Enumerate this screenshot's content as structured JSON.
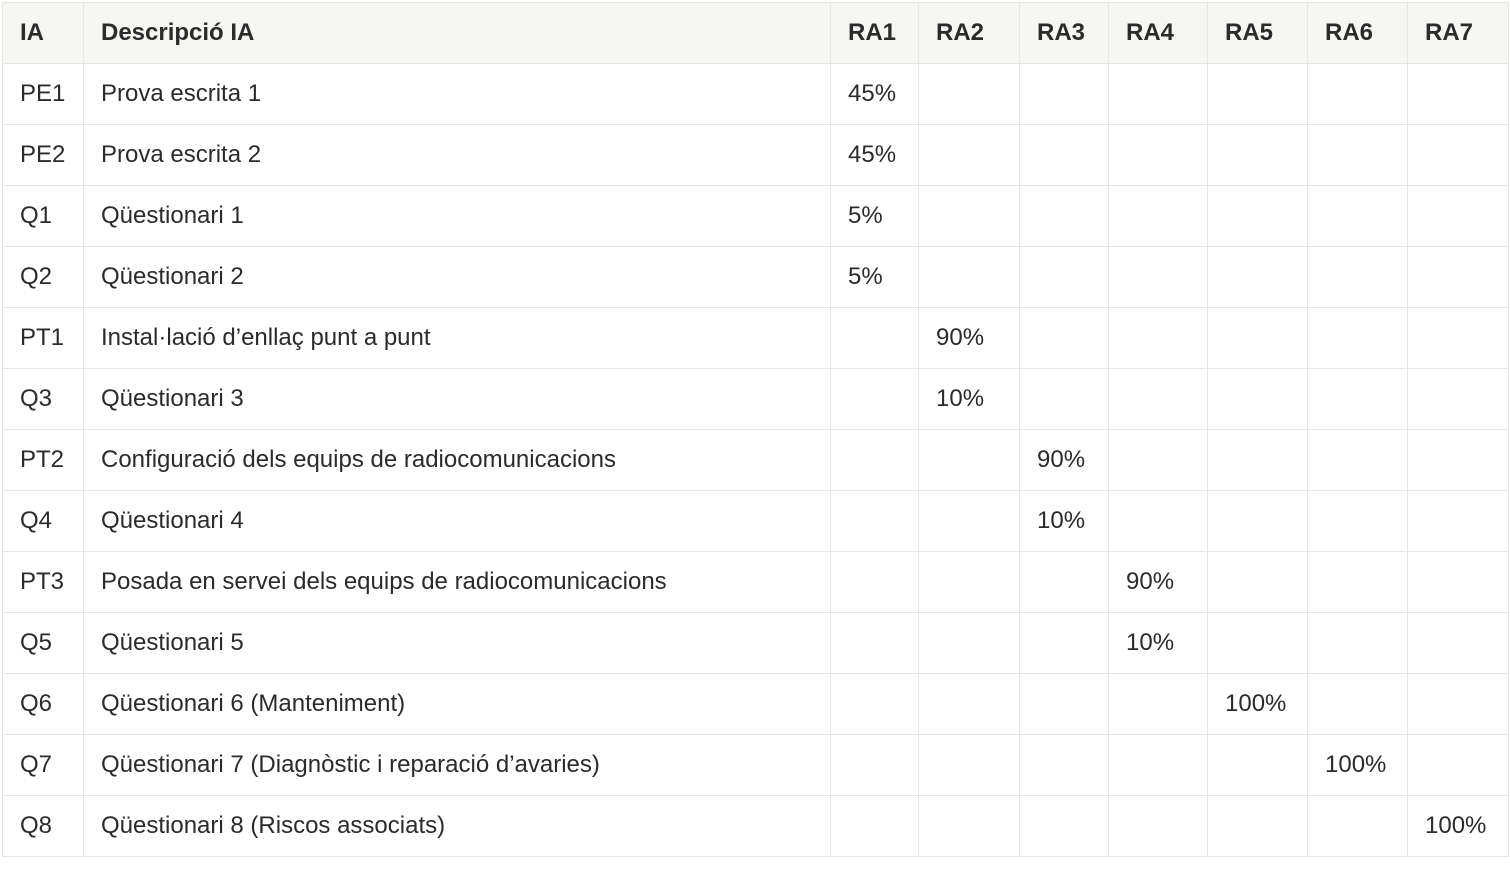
{
  "table": {
    "headers": [
      "IA",
      "Descripció IA",
      "RA1",
      "RA2",
      "RA3",
      "RA4",
      "RA5",
      "RA6",
      "RA7"
    ],
    "rows": [
      [
        "PE1",
        "Prova escrita 1",
        "45%",
        "",
        "",
        "",
        "",
        "",
        ""
      ],
      [
        "PE2",
        "Prova escrita 2",
        "45%",
        "",
        "",
        "",
        "",
        "",
        ""
      ],
      [
        "Q1",
        "Qüestionari 1",
        "5%",
        "",
        "",
        "",
        "",
        "",
        ""
      ],
      [
        "Q2",
        "Qüestionari 2",
        "5%",
        "",
        "",
        "",
        "",
        "",
        ""
      ],
      [
        "PT1",
        "Instal·lació d’enllaç punt a punt",
        "",
        "90%",
        "",
        "",
        "",
        "",
        ""
      ],
      [
        "Q3",
        "Qüestionari 3",
        "",
        "10%",
        "",
        "",
        "",
        "",
        ""
      ],
      [
        "PT2",
        "Configuració dels equips de radiocomunicacions",
        "",
        "",
        "90%",
        "",
        "",
        "",
        ""
      ],
      [
        "Q4",
        "Qüestionari 4",
        "",
        "",
        "10%",
        "",
        "",
        "",
        ""
      ],
      [
        "PT3",
        "Posada en servei dels equips de radiocomunicacions",
        "",
        "",
        "",
        "90%",
        "",
        "",
        ""
      ],
      [
        "Q5",
        "Qüestionari 5",
        "",
        "",
        "",
        "10%",
        "",
        "",
        ""
      ],
      [
        "Q6",
        "Qüestionari 6 (Manteniment)",
        "",
        "",
        "",
        "",
        "100%",
        "",
        ""
      ],
      [
        "Q7",
        "Qüestionari 7 (Diagnòstic i reparació d’avaries)",
        "",
        "",
        "",
        "",
        "",
        "100%",
        ""
      ],
      [
        "Q8",
        "Qüestionari 8 (Riscos associats)",
        "",
        "",
        "",
        "",
        "",
        "",
        "100%"
      ]
    ]
  }
}
